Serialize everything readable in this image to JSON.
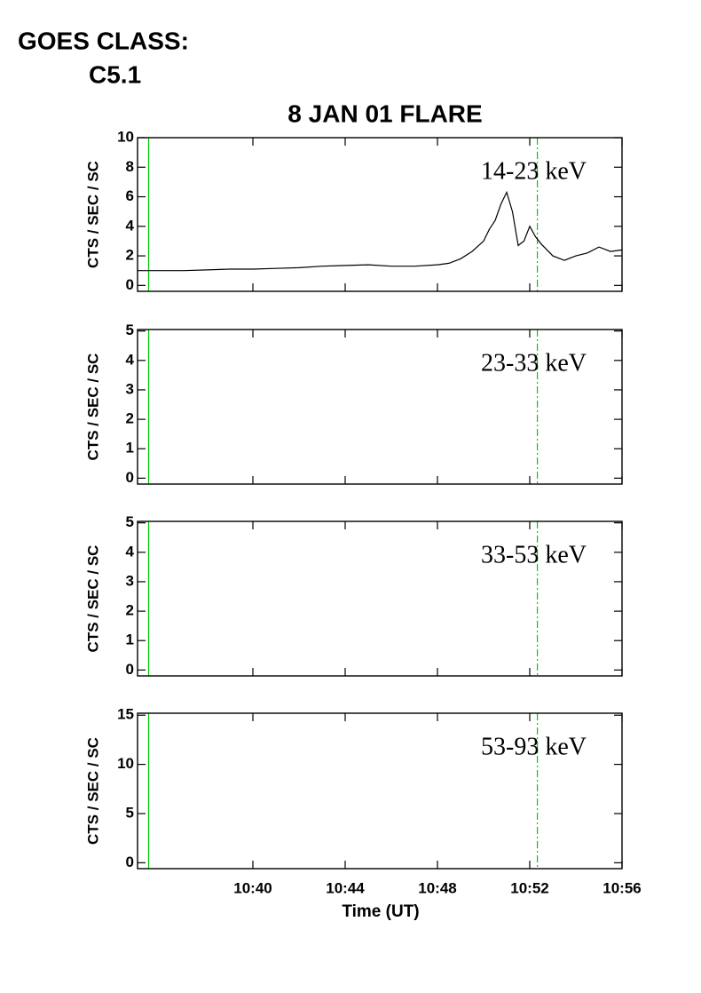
{
  "header": {
    "label": "GOES CLASS:",
    "value": "C5.1"
  },
  "chart_data": [
    {
      "type": "line",
      "title": "8 JAN 01 FLARE",
      "ylabel": "CTS / SEC / SC",
      "annotation": "14-23 keV",
      "x": [
        35,
        36,
        37,
        38,
        39,
        40,
        41,
        42,
        43,
        44,
        45,
        46,
        47,
        48,
        48.5,
        49,
        49.5,
        50,
        50.25,
        50.5,
        50.75,
        51,
        51.25,
        51.5,
        51.75,
        52,
        52.25,
        52.5,
        53,
        53.5,
        54,
        54.5,
        55,
        55.5,
        56
      ],
      "values": [
        1.0,
        1.0,
        1.0,
        1.05,
        1.1,
        1.1,
        1.15,
        1.2,
        1.3,
        1.35,
        1.4,
        1.3,
        1.3,
        1.4,
        1.5,
        1.8,
        2.3,
        3.0,
        3.8,
        4.4,
        5.5,
        6.3,
        5.0,
        2.7,
        3.0,
        4.0,
        3.3,
        2.8,
        2.0,
        1.7,
        2.0,
        2.2,
        2.6,
        2.3,
        2.4
      ],
      "color": "#000000",
      "xlim": [
        35,
        56
      ],
      "xticks": [
        40,
        44,
        48,
        52,
        56
      ],
      "ylim": [
        -0.4,
        10
      ],
      "yticks": [
        0,
        2,
        4,
        6,
        8,
        10
      ],
      "vlines": [
        {
          "x": 35.48,
          "color": "#00cc00",
          "dash": false
        },
        {
          "x": 52.33,
          "color": "#00cc00",
          "dash": true
        }
      ]
    },
    {
      "type": "line",
      "ylabel": "CTS / SEC / SC",
      "annotation": "23-33 keV",
      "xlim": [
        35,
        56
      ],
      "xticks": [
        40,
        44,
        48,
        52,
        56
      ],
      "ylim": [
        -0.2,
        5.05
      ],
      "yticks": [
        0,
        1,
        2,
        3,
        4,
        5
      ],
      "vlines": [
        {
          "x": 35.48,
          "color": "#00cc00",
          "dash": false
        },
        {
          "x": 52.33,
          "color": "#00cc00",
          "dash": true
        }
      ]
    },
    {
      "type": "line",
      "ylabel": "CTS / SEC / SC",
      "annotation": "33-53 keV",
      "xlim": [
        35,
        56
      ],
      "xticks": [
        40,
        44,
        48,
        52,
        56
      ],
      "ylim": [
        -0.2,
        5.05
      ],
      "yticks": [
        0,
        1,
        2,
        3,
        4,
        5
      ],
      "vlines": [
        {
          "x": 35.48,
          "color": "#00cc00",
          "dash": false
        },
        {
          "x": 52.33,
          "color": "#00cc00",
          "dash": true
        }
      ]
    },
    {
      "type": "line",
      "ylabel": "CTS / SEC / SC",
      "annotation": "53-93 keV",
      "xlabel": "Time (UT)",
      "xlim": [
        35,
        56
      ],
      "xticks": [
        {
          "value": 40,
          "label": "10:40"
        },
        {
          "value": 44,
          "label": "10:44"
        },
        {
          "value": 48,
          "label": "10:48"
        },
        {
          "value": 52,
          "label": "10:52"
        },
        {
          "value": 56,
          "label": "10:56"
        }
      ],
      "ylim": [
        -0.6,
        15.2
      ],
      "yticks": [
        0,
        5,
        10,
        15
      ],
      "vlines": [
        {
          "x": 35.48,
          "color": "#00cc00",
          "dash": false
        },
        {
          "x": 52.33,
          "color": "#00cc00",
          "dash": true
        }
      ]
    }
  ]
}
